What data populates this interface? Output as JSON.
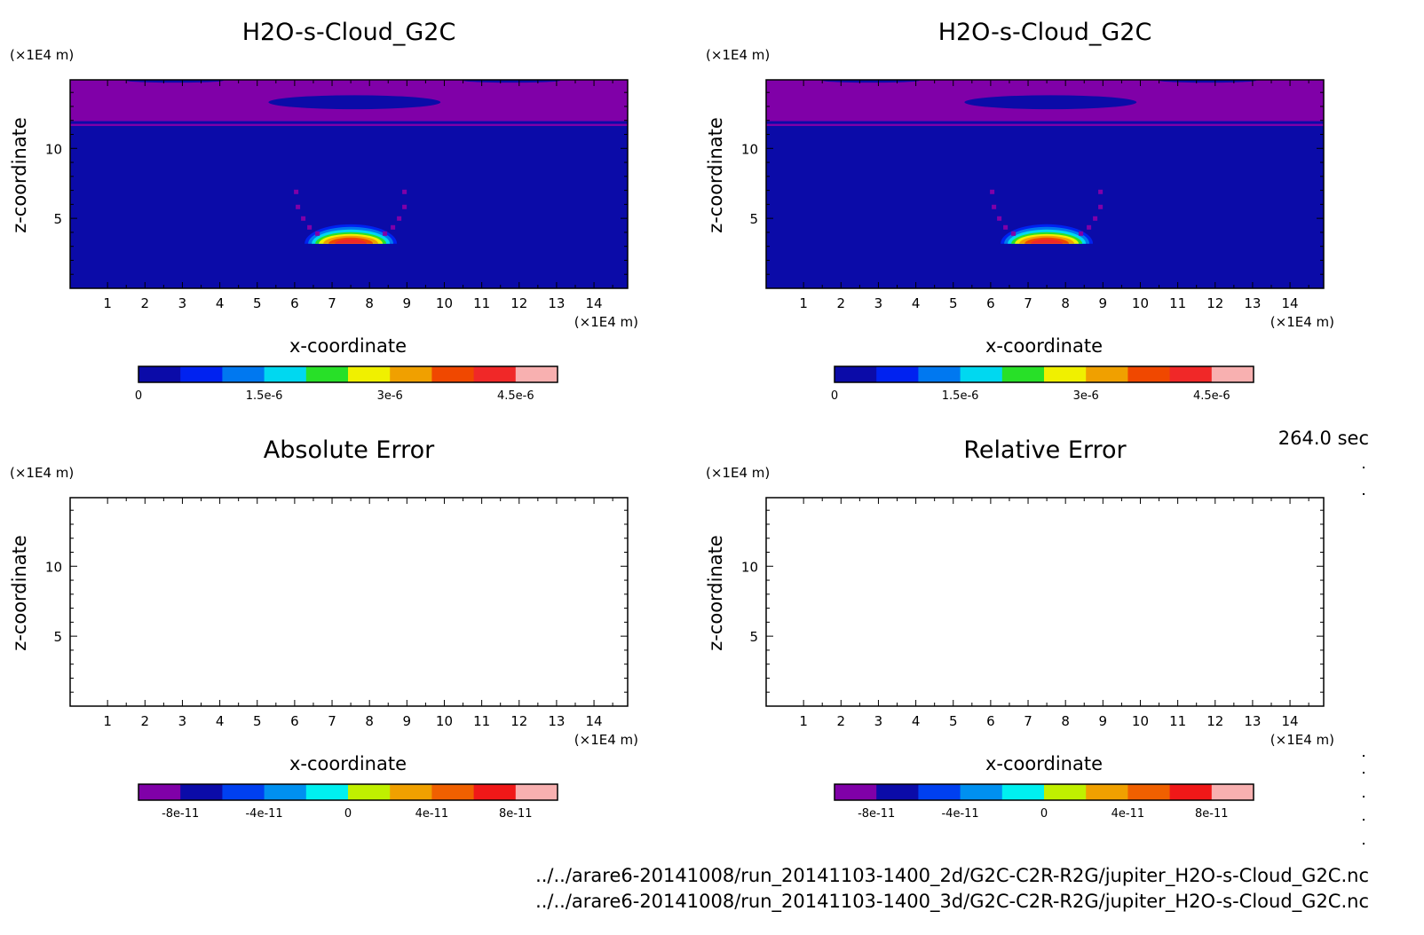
{
  "time_label": "264.0 sec",
  "file_paths": [
    "../../arare6-20141008/run_20141103-1400_2d/G2C-C2R-R2G/jupiter_H2O-s-Cloud_G2C.nc",
    "../../arare6-20141008/run_20141103-1400_3d/G2C-C2R-R2G/jupiter_H2O-s-Cloud_G2C.nc"
  ],
  "chart_data": [
    {
      "type": "heatmap",
      "title": "H2O-s-Cloud_G2C",
      "xlabel": "x-coordinate",
      "ylabel": "z-coordinate",
      "x_unit": "(×1E4 m)",
      "y_unit": "(×1E4 m)",
      "xlim": [
        0,
        14.9
      ],
      "ylim": [
        0,
        14.9
      ],
      "x_ticks": [
        "1",
        "2",
        "3",
        "4",
        "5",
        "6",
        "7",
        "8",
        "9",
        "10",
        "11",
        "12",
        "13",
        "14"
      ],
      "y_ticks": [
        "5",
        "10"
      ],
      "colorbar": {
        "levels": [
          0,
          5e-07,
          1e-06,
          1.5e-06,
          2e-06,
          2.5e-06,
          3e-06,
          3.5e-06,
          4e-06,
          4.5e-06,
          5e-06
        ],
        "colors": [
          "#0b0ba8",
          "#0022f0",
          "#0078f0",
          "#00d8f0",
          "#28e028",
          "#f0f000",
          "#f0a000",
          "#f04800",
          "#f02828",
          "#f8b0b0"
        ],
        "tick_labels": [
          "0",
          "1.5e-6",
          "3e-6",
          "4.5e-6"
        ],
        "tick_values": [
          0,
          1.5e-06,
          3e-06,
          4.5e-06
        ],
        "below_color": "#8000a8"
      },
      "features": [
        {
          "kind": "layer",
          "z": [
            11.6,
            14.9
          ],
          "value": "below-min"
        },
        {
          "kind": "line",
          "z": 11.85,
          "value": 0
        },
        {
          "kind": "ellipse",
          "x": 7.6,
          "z": 13.3,
          "rx": 2.3,
          "rz": 0.5,
          "value": 0
        },
        {
          "kind": "ellipse",
          "x": 2.8,
          "z": 14.85,
          "rx": 1.3,
          "rz": 0.15,
          "value": 0
        },
        {
          "kind": "ellipse",
          "x": 11.8,
          "z": 14.85,
          "rx": 1.3,
          "rz": 0.15,
          "value": 0
        },
        {
          "kind": "cloud",
          "x": 7.5,
          "z": 3.5,
          "peak": 4.6e-06
        }
      ]
    },
    {
      "type": "heatmap",
      "title": "H2O-s-Cloud_G2C",
      "xlabel": "x-coordinate",
      "ylabel": "z-coordinate",
      "x_unit": "(×1E4 m)",
      "y_unit": "(×1E4 m)",
      "xlim": [
        0,
        14.9
      ],
      "ylim": [
        0,
        14.9
      ],
      "x_ticks": [
        "1",
        "2",
        "3",
        "4",
        "5",
        "6",
        "7",
        "8",
        "9",
        "10",
        "11",
        "12",
        "13",
        "14"
      ],
      "y_ticks": [
        "5",
        "10"
      ],
      "colorbar": {
        "levels": [
          0,
          5e-07,
          1e-06,
          1.5e-06,
          2e-06,
          2.5e-06,
          3e-06,
          3.5e-06,
          4e-06,
          4.5e-06,
          5e-06
        ],
        "colors": [
          "#0b0ba8",
          "#0022f0",
          "#0078f0",
          "#00d8f0",
          "#28e028",
          "#f0f000",
          "#f0a000",
          "#f04800",
          "#f02828",
          "#f8b0b0"
        ],
        "tick_labels": [
          "0",
          "1.5e-6",
          "3e-6",
          "4.5e-6"
        ],
        "tick_values": [
          0,
          1.5e-06,
          3e-06,
          4.5e-06
        ],
        "below_color": "#8000a8"
      },
      "features": [
        {
          "kind": "layer",
          "z": [
            11.6,
            14.9
          ],
          "value": "below-min"
        },
        {
          "kind": "line",
          "z": 11.85,
          "value": 0
        },
        {
          "kind": "ellipse",
          "x": 7.6,
          "z": 13.3,
          "rx": 2.3,
          "rz": 0.5,
          "value": 0
        },
        {
          "kind": "ellipse",
          "x": 2.8,
          "z": 14.85,
          "rx": 1.3,
          "rz": 0.15,
          "value": 0
        },
        {
          "kind": "ellipse",
          "x": 11.8,
          "z": 14.85,
          "rx": 1.3,
          "rz": 0.15,
          "value": 0
        },
        {
          "kind": "cloud",
          "x": 7.5,
          "z": 3.5,
          "peak": 4.6e-06
        }
      ]
    },
    {
      "type": "heatmap",
      "title": "Absolute Error",
      "xlabel": "x-coordinate",
      "ylabel": "z-coordinate",
      "x_unit": "(×1E4 m)",
      "y_unit": "(×1E4 m)",
      "xlim": [
        0,
        14.9
      ],
      "ylim": [
        0,
        14.9
      ],
      "x_ticks": [
        "1",
        "2",
        "3",
        "4",
        "5",
        "6",
        "7",
        "8",
        "9",
        "10",
        "11",
        "12",
        "13",
        "14"
      ],
      "y_ticks": [
        "5",
        "10"
      ],
      "colorbar": {
        "levels": [
          -1e-10,
          -8e-11,
          -6e-11,
          -4e-11,
          -2e-11,
          0,
          2e-11,
          4e-11,
          6e-11,
          8e-11,
          1e-10
        ],
        "colors": [
          "#8000a8",
          "#0b0ba8",
          "#0040f0",
          "#0090f0",
          "#00f0f0",
          "#c0f000",
          "#f0a000",
          "#f06000",
          "#f01818",
          "#f8b0b0"
        ],
        "tick_labels": [
          "-8e-11",
          "-4e-11",
          "0",
          "4e-11",
          "8e-11"
        ],
        "tick_values": [
          -8e-11,
          -4e-11,
          0,
          4e-11,
          8e-11
        ]
      },
      "features": []
    },
    {
      "type": "heatmap",
      "title": "Relative Error",
      "xlabel": "x-coordinate",
      "ylabel": "z-coordinate",
      "x_unit": "(×1E4 m)",
      "y_unit": "(×1E4 m)",
      "xlim": [
        0,
        14.9
      ],
      "ylim": [
        0,
        14.9
      ],
      "x_ticks": [
        "1",
        "2",
        "3",
        "4",
        "5",
        "6",
        "7",
        "8",
        "9",
        "10",
        "11",
        "12",
        "13",
        "14"
      ],
      "y_ticks": [
        "5",
        "10"
      ],
      "colorbar": {
        "levels": [
          -1e-10,
          -8e-11,
          -6e-11,
          -4e-11,
          -2e-11,
          0,
          2e-11,
          4e-11,
          6e-11,
          8e-11,
          1e-10
        ],
        "colors": [
          "#8000a8",
          "#0b0ba8",
          "#0040f0",
          "#0090f0",
          "#00f0f0",
          "#c0f000",
          "#f0a000",
          "#f06000",
          "#f01818",
          "#f8b0b0"
        ],
        "tick_labels": [
          "-8e-11",
          "-4e-11",
          "0",
          "4e-11",
          "8e-11"
        ],
        "tick_values": [
          -8e-11,
          -4e-11,
          0,
          4e-11,
          8e-11
        ]
      },
      "features": []
    }
  ]
}
